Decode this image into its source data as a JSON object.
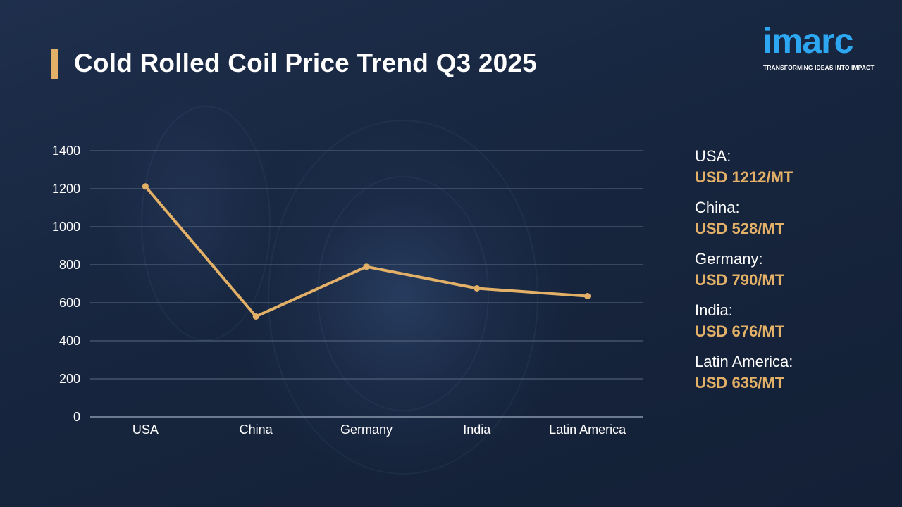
{
  "header": {
    "title": "Cold Rolled Coil Price Trend Q3 2025"
  },
  "logo": {
    "name": "imarc",
    "tagline": "TRANSFORMING IDEAS INTO IMPACT"
  },
  "colors": {
    "accent": "#e3b067",
    "line": "#e3b067",
    "grid": "#5b6a83",
    "text": "#ffffff",
    "logo": "#2ea7f2"
  },
  "chart_data": {
    "type": "line",
    "categories": [
      "USA",
      "China",
      "Germany",
      "India",
      "Latin America"
    ],
    "values": [
      1212,
      528,
      790,
      676,
      635
    ],
    "ylim": [
      0,
      1400
    ],
    "yticks": [
      0,
      200,
      400,
      600,
      800,
      1000,
      1200,
      1400
    ],
    "grid": true,
    "xlabel": "",
    "ylabel": ""
  },
  "legend": {
    "items": [
      {
        "name": "USA:",
        "value": "USD 1212/MT"
      },
      {
        "name": "China:",
        "value": "USD 528/MT"
      },
      {
        "name": "Germany:",
        "value": "USD 790/MT"
      },
      {
        "name": "India:",
        "value": "USD 676/MT"
      },
      {
        "name": "Latin America:",
        "value": "USD 635/MT"
      }
    ]
  }
}
